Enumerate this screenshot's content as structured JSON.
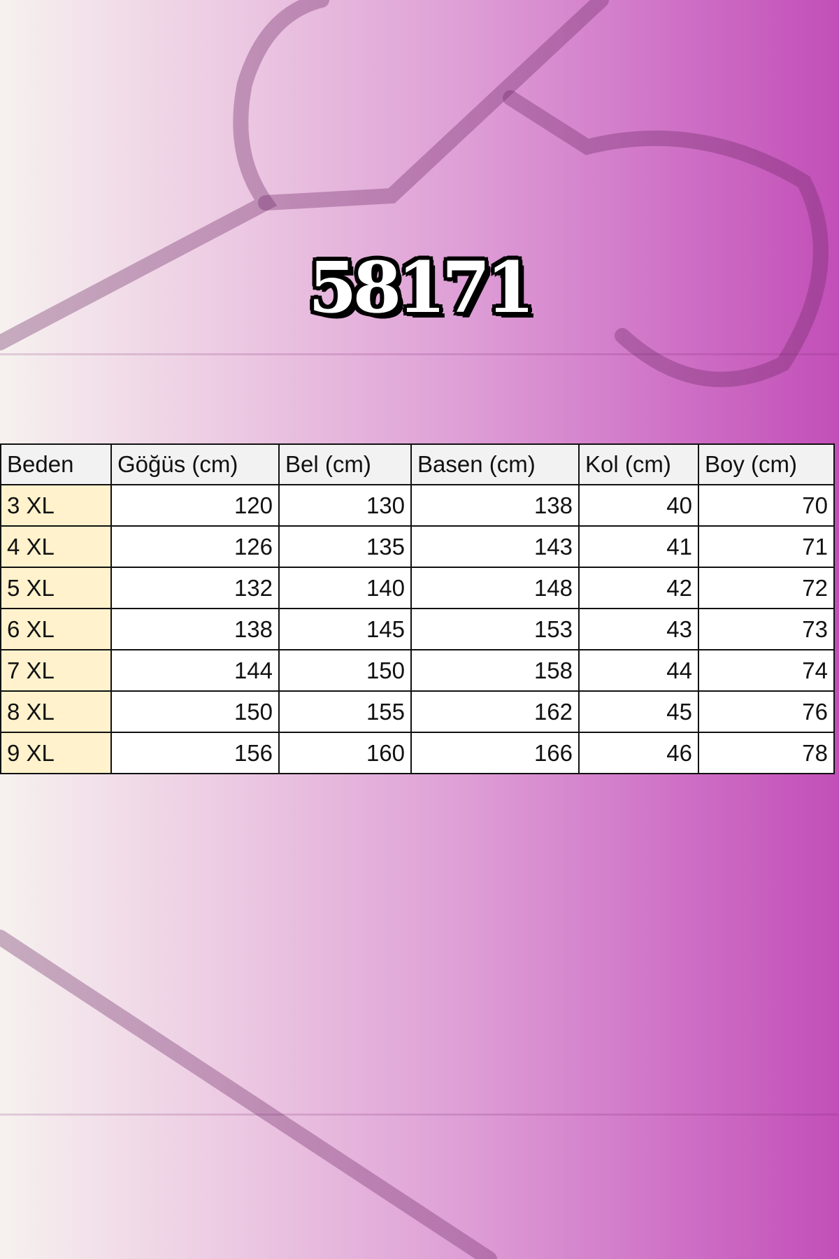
{
  "title": "58171",
  "table": {
    "headers": [
      "Beden",
      "Göğüs (cm)",
      "Bel (cm)",
      "Basen (cm)",
      "Kol (cm)",
      "Boy (cm)"
    ],
    "rows": [
      [
        "3 XL",
        "120",
        "130",
        "138",
        "40",
        "70"
      ],
      [
        "4 XL",
        "126",
        "135",
        "143",
        "41",
        "71"
      ],
      [
        "5 XL",
        "132",
        "140",
        "148",
        "42",
        "72"
      ],
      [
        "6 XL",
        "138",
        "145",
        "153",
        "43",
        "73"
      ],
      [
        "7 XL",
        "144",
        "150",
        "158",
        "44",
        "74"
      ],
      [
        "8 XL",
        "150",
        "155",
        "162",
        "45",
        "76"
      ],
      [
        "9 XL",
        "156",
        "160",
        "166",
        "46",
        "78"
      ]
    ]
  },
  "colors": {
    "background_left": "#f6f1ef",
    "background_right": "#c24fb8",
    "size_column": "#fff2cc",
    "header": "#f2f2f2"
  }
}
